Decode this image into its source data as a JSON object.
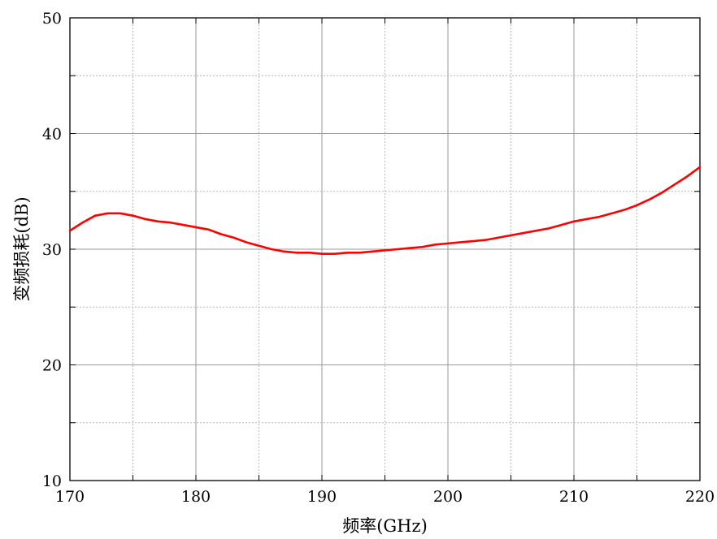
{
  "chart_data": {
    "type": "line",
    "title": "",
    "xlabel": "频率(GHz)",
    "ylabel": "变频损耗(dB)",
    "xlim": [
      170,
      220
    ],
    "ylim": [
      10,
      50
    ],
    "x_ticks": [
      170,
      180,
      190,
      200,
      210,
      220
    ],
    "y_ticks": [
      10,
      20,
      30,
      40,
      50
    ],
    "x_tick_labels": [
      "170",
      "180",
      "190",
      "200",
      "210",
      "220"
    ],
    "y_tick_labels": [
      "10",
      "20",
      "30",
      "40",
      "50"
    ],
    "x_grid_step": 5,
    "y_grid_step": 5,
    "grid": true,
    "series": [
      {
        "color": "#ff0000",
        "x": [
          170,
          171,
          172,
          173,
          174,
          175,
          176,
          177,
          178,
          179,
          180,
          181,
          182,
          183,
          184,
          185,
          186,
          187,
          188,
          189,
          190,
          191,
          192,
          193,
          194,
          195,
          196,
          197,
          198,
          199,
          200,
          201,
          202,
          203,
          204,
          205,
          206,
          207,
          208,
          209,
          210,
          211,
          212,
          213,
          214,
          215,
          216,
          217,
          218,
          219,
          220
        ],
        "y": [
          31.6,
          32.3,
          32.9,
          33.1,
          33.1,
          32.9,
          32.6,
          32.4,
          32.3,
          32.1,
          31.9,
          31.7,
          31.3,
          31.0,
          30.6,
          30.3,
          30.0,
          29.8,
          29.7,
          29.7,
          29.6,
          29.6,
          29.7,
          29.7,
          29.8,
          29.9,
          30.0,
          30.1,
          30.2,
          30.4,
          30.5,
          30.6,
          30.7,
          30.8,
          31.0,
          31.2,
          31.4,
          31.6,
          31.8,
          32.1,
          32.4,
          32.6,
          32.8,
          33.1,
          33.4,
          33.8,
          34.3,
          34.9,
          35.6,
          36.3,
          37.1
        ]
      }
    ]
  }
}
